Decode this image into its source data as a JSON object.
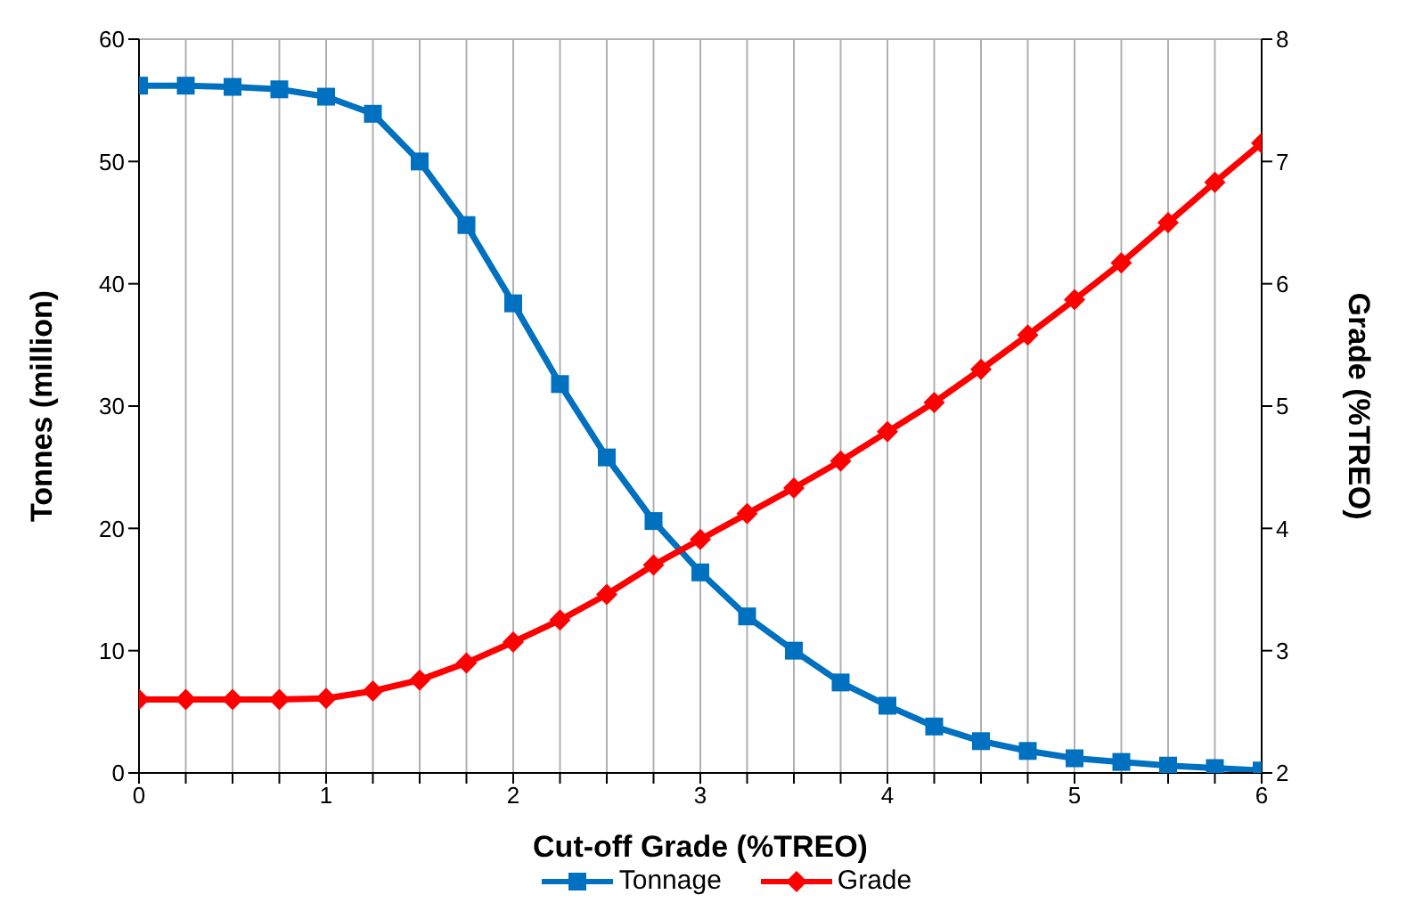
{
  "chart_data": {
    "type": "line",
    "xlabel": "Cut-off Grade (%TREO)",
    "ylabel": "Tonnes (million)",
    "y2label": "Grade (%TREO)",
    "x": [
      0,
      0.25,
      0.5,
      0.75,
      1,
      1.25,
      1.5,
      1.75,
      2,
      2.25,
      2.5,
      2.75,
      3,
      3.25,
      3.5,
      3.75,
      4,
      4.25,
      4.5,
      4.75,
      5,
      5.25,
      5.5,
      5.75,
      6
    ],
    "series": [
      {
        "name": "Tonnage",
        "color": "#0070c0",
        "marker": "square",
        "values": [
          56.2,
          56.2,
          56.1,
          55.9,
          55.3,
          53.9,
          50,
          44.8,
          38.4,
          31.8,
          25.8,
          20.6,
          16.4,
          12.8,
          10,
          7.4,
          5.5,
          3.8,
          2.6,
          1.8,
          1.2,
          0.9,
          0.6,
          0.4,
          0.2
        ]
      },
      {
        "name": "Grade",
        "color": "#ff0000",
        "marker": "diamond",
        "axis": "y2",
        "values": [
          2.6,
          2.6,
          2.6,
          2.6,
          2.61,
          2.67,
          2.76,
          2.9,
          3.07,
          3.25,
          3.46,
          3.7,
          3.91,
          4.12,
          4.33,
          4.55,
          4.79,
          5.03,
          5.3,
          5.58,
          5.87,
          6.17,
          6.5,
          6.83,
          7.15
        ]
      }
    ],
    "xlim": [
      0,
      6
    ],
    "xticks": [
      0,
      {
        "value": 0.25,
        "label": null
      },
      {
        "value": 0.5,
        "label": null
      },
      {
        "value": 0.75,
        "label": null
      },
      1,
      {
        "value": 1.25,
        "label": null
      },
      {
        "value": 1.5,
        "label": null
      },
      {
        "value": 1.75,
        "label": null
      },
      2,
      {
        "value": 2.25,
        "label": null
      },
      {
        "value": 2.5,
        "label": null
      },
      {
        "value": 2.75,
        "label": null
      },
      3,
      {
        "value": 3.25,
        "label": null
      },
      {
        "value": 3.5,
        "label": null
      },
      {
        "value": 3.75,
        "label": null
      },
      4,
      {
        "value": 4.25,
        "label": null
      },
      {
        "value": 4.5,
        "label": null
      },
      {
        "value": 4.75,
        "label": null
      },
      5,
      {
        "value": 5.25,
        "label": null
      },
      {
        "value": 5.5,
        "label": null
      },
      {
        "value": 5.75,
        "label": null
      },
      6
    ],
    "ylim": [
      0,
      60
    ],
    "yticks": [
      0,
      10,
      20,
      30,
      40,
      50,
      60
    ],
    "y2lim": [
      2,
      8
    ],
    "y2ticks": [
      2,
      3,
      4,
      5,
      6,
      7,
      8
    ],
    "grid": true,
    "legend": "bottom",
    "line_style": "solid"
  }
}
